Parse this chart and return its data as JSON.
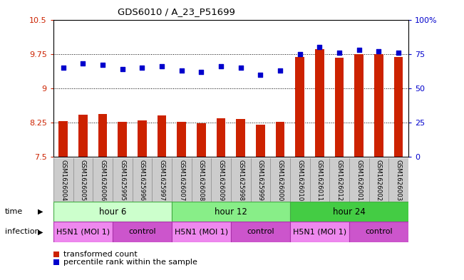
{
  "title": "GDS6010 / A_23_P51699",
  "samples": [
    "GSM1626004",
    "GSM1626005",
    "GSM1626006",
    "GSM1625995",
    "GSM1625996",
    "GSM1625997",
    "GSM1626007",
    "GSM1626008",
    "GSM1626009",
    "GSM1625998",
    "GSM1625999",
    "GSM1626000",
    "GSM1626010",
    "GSM1626011",
    "GSM1626012",
    "GSM1626001",
    "GSM1626002",
    "GSM1626003"
  ],
  "bar_values": [
    8.28,
    8.42,
    8.44,
    8.27,
    8.3,
    8.4,
    8.27,
    8.24,
    8.34,
    8.33,
    8.2,
    8.27,
    9.69,
    9.85,
    9.67,
    9.75,
    9.74,
    9.69
  ],
  "dot_values": [
    65,
    68,
    67,
    64,
    65,
    66,
    63,
    62,
    66,
    65,
    60,
    63,
    75,
    80,
    76,
    78,
    77,
    76
  ],
  "bar_color": "#cc2200",
  "dot_color": "#0000cc",
  "ylim_left": [
    7.5,
    10.5
  ],
  "ylim_right": [
    0,
    100
  ],
  "yticks_left": [
    7.5,
    8.25,
    9.0,
    9.75,
    10.5
  ],
  "yticks_left_labels": [
    "7.5",
    "8.25",
    "9",
    "9.75",
    "10.5"
  ],
  "yticks_right": [
    0,
    25,
    50,
    75,
    100
  ],
  "yticks_right_labels": [
    "0",
    "25",
    "50",
    "75",
    "100%"
  ],
  "hlines": [
    8.25,
    9.0,
    9.75
  ],
  "groups": [
    {
      "label": "hour 6",
      "start": 0,
      "end": 6,
      "color": "#ccffcc"
    },
    {
      "label": "hour 12",
      "start": 6,
      "end": 12,
      "color": "#88ee88"
    },
    {
      "label": "hour 24",
      "start": 12,
      "end": 18,
      "color": "#44cc44"
    }
  ],
  "infection_groups": [
    {
      "label": "H5N1 (MOI 1)",
      "start": 0,
      "end": 3,
      "color": "#ee88ee"
    },
    {
      "label": "control",
      "start": 3,
      "end": 6,
      "color": "#cc55cc"
    },
    {
      "label": "H5N1 (MOI 1)",
      "start": 6,
      "end": 9,
      "color": "#ee88ee"
    },
    {
      "label": "control",
      "start": 9,
      "end": 12,
      "color": "#cc55cc"
    },
    {
      "label": "H5N1 (MOI 1)",
      "start": 12,
      "end": 15,
      "color": "#ee88ee"
    },
    {
      "label": "control",
      "start": 15,
      "end": 18,
      "color": "#cc55cc"
    }
  ],
  "time_label": "time",
  "infection_label": "infection",
  "legend_bar": "transformed count",
  "legend_dot": "percentile rank within the sample",
  "background_color": "#ffffff",
  "tick_label_color_left": "#cc2200",
  "tick_label_color_right": "#0000cc"
}
